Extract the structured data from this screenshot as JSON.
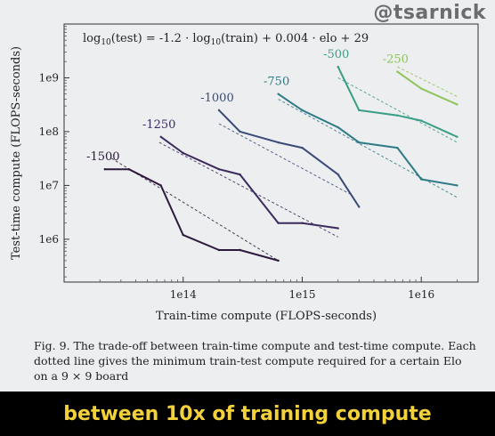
{
  "watermark": "@tsarnick",
  "caption": "Fig. 9.  The trade-off between train-time compute and test-time compute. Each dotted line gives the minimum train-test compute required for a certain Elo on a 9 × 9 board",
  "subtitle": "between 10x of training compute",
  "chart_data": {
    "type": "line",
    "title": "",
    "annotation": "log10(test) = -1.2 · log10(train) + 0.004 · elo + 29",
    "xlabel": "Train-time compute (FLOPS-seconds)",
    "ylabel": "Test-time compute (FLOPS-seconds)",
    "xscale": "log",
    "yscale": "log",
    "xlim": [
      10000000000000.0,
      3e+16
    ],
    "ylim": [
      160000.0,
      10000000000.0
    ],
    "xticks": [
      {
        "v": 100000000000000.0,
        "label": "1e14"
      },
      {
        "v": 1000000000000000.0,
        "label": "1e15"
      },
      {
        "v": 1e+16,
        "label": "1e16"
      }
    ],
    "yticks": [
      {
        "v": 1000000.0,
        "label": "1e6"
      },
      {
        "v": 10000000.0,
        "label": "1e7"
      },
      {
        "v": 100000000.0,
        "label": "1e8"
      },
      {
        "v": 1000000000.0,
        "label": "1e9"
      }
    ],
    "grid": false,
    "series": [
      {
        "name": "-1500",
        "color": "#2b1a3c",
        "x": [
          22000000000000.0,
          35000000000000.0,
          65000000000000.0,
          100000000000000.0,
          200000000000000.0,
          300000000000000.0,
          630000000000000.0
        ],
        "y": [
          20000000.0,
          20000000.0,
          10000000.0,
          1200000.0,
          630000.0,
          630000.0,
          400000.0
        ]
      },
      {
        "name": "-1250",
        "color": "#3b2a5c",
        "x": [
          65000000000000.0,
          100000000000000.0,
          200000000000000.0,
          300000000000000.0,
          630000000000000.0,
          1000000000000000.0,
          2000000000000000.0
        ],
        "y": [
          80000000.0,
          40000000.0,
          20000000.0,
          16000000.0,
          2000000.0,
          2000000.0,
          1600000.0
        ]
      },
      {
        "name": "-1000",
        "color": "#3a4a78",
        "x": [
          200000000000000.0,
          300000000000000.0,
          630000000000000.0,
          1000000000000000.0,
          2000000000000000.0,
          3000000000000000.0
        ],
        "y": [
          250000000.0,
          100000000.0,
          63000000.0,
          50000000.0,
          16000000.0,
          4000000.0
        ]
      },
      {
        "name": "-750",
        "color": "#2e7a86",
        "x": [
          630000000000000.0,
          1000000000000000.0,
          2000000000000000.0,
          3000000000000000.0,
          6300000000000000.0,
          1e+16,
          2e+16
        ],
        "y": [
          500000000.0,
          250000000.0,
          120000000.0,
          63000000.0,
          50000000.0,
          13000000.0,
          10000000.0
        ]
      },
      {
        "name": "-500",
        "color": "#3a9e86",
        "x": [
          2000000000000000.0,
          3000000000000000.0,
          6300000000000000.0,
          1e+16,
          2e+16
        ],
        "y": [
          1600000000.0,
          250000000.0,
          200000000.0,
          160000000.0,
          80000000.0
        ]
      },
      {
        "name": "-250",
        "color": "#8ec45a",
        "x": [
          6300000000000000.0,
          1e+16,
          2e+16
        ],
        "y": [
          1300000000.0,
          630000000.0,
          320000000.0
        ]
      }
    ],
    "min_compute_lines": [
      {
        "elo": -1500,
        "x": [
          25000000000000.0,
          630000000000000.0
        ],
        "y": [
          32000000.0,
          400000.0
        ]
      },
      {
        "elo": -1250,
        "x": [
          63000000000000.0,
          2000000000000000.0
        ],
        "y": [
          63000000.0,
          1100000.0
        ]
      },
      {
        "elo": -1000,
        "x": [
          200000000000000.0,
          2500000000000000.0
        ],
        "y": [
          140000000.0,
          7000000.0
        ]
      },
      {
        "elo": -750,
        "x": [
          630000000000000.0,
          2e+16
        ],
        "y": [
          400000000.0,
          6000000.0
        ]
      },
      {
        "elo": -500,
        "x": [
          2000000000000000.0,
          2e+16
        ],
        "y": [
          1000000000.0,
          63000000.0
        ]
      },
      {
        "elo": -250,
        "x": [
          6300000000000000.0,
          2e+16
        ],
        "y": [
          1600000000.0,
          450000000.0
        ]
      }
    ]
  }
}
